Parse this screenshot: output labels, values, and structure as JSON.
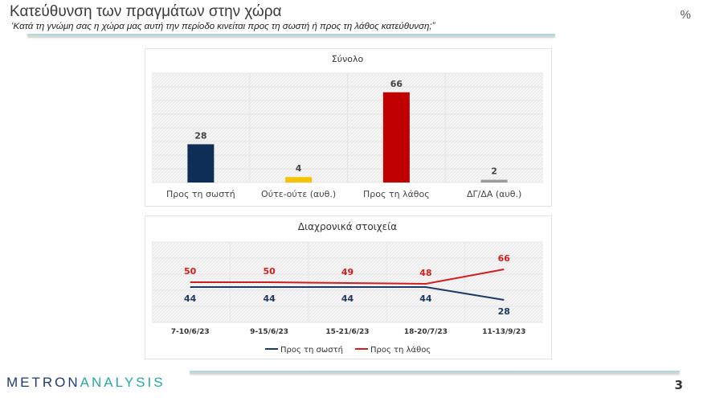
{
  "header": {
    "title": "Κατεύθυνση των πραγμάτων στην χώρα",
    "subtitle": "‘Κατά τη γνώμη σας η χώρα μας αυτή την περίοδο κινείται προς τη σωστή ή προς τη λάθος κατεύθυνση;”",
    "unit": "%"
  },
  "footer": {
    "logo_part1": "METRON",
    "logo_part2": "ANALYSIS",
    "page": "3"
  },
  "chart_data": [
    {
      "type": "bar",
      "title": "Σύνολο",
      "categories": [
        "Προς τη σωστή",
        "Ούτε-ούτε (αυθ.)",
        "Προς τη λάθος",
        "ΔΓ/ΔΑ (αυθ.)"
      ],
      "values": [
        28,
        4,
        66,
        2
      ],
      "colors": [
        "#0e2d57",
        "#f5c400",
        "#c00000",
        "#9a9a9a"
      ],
      "ylim": [
        0,
        80
      ],
      "grid": true
    },
    {
      "type": "line",
      "title": "Διαχρονικά στοιχεία",
      "categories": [
        "7-10/6/23",
        "9-15/6/23",
        "15-21/6/23",
        "18-20/7/23",
        "11-13/9/23"
      ],
      "ylim": [
        0,
        100
      ],
      "grid": true,
      "legend": "bottom",
      "series": [
        {
          "name": "Προς τη σωστή",
          "values": [
            44,
            44,
            44,
            44,
            28
          ],
          "color": "#1f3864"
        },
        {
          "name": "Προς τη λάθος",
          "values": [
            50,
            50,
            49,
            48,
            66
          ],
          "color": "#d01f1f"
        }
      ]
    }
  ]
}
